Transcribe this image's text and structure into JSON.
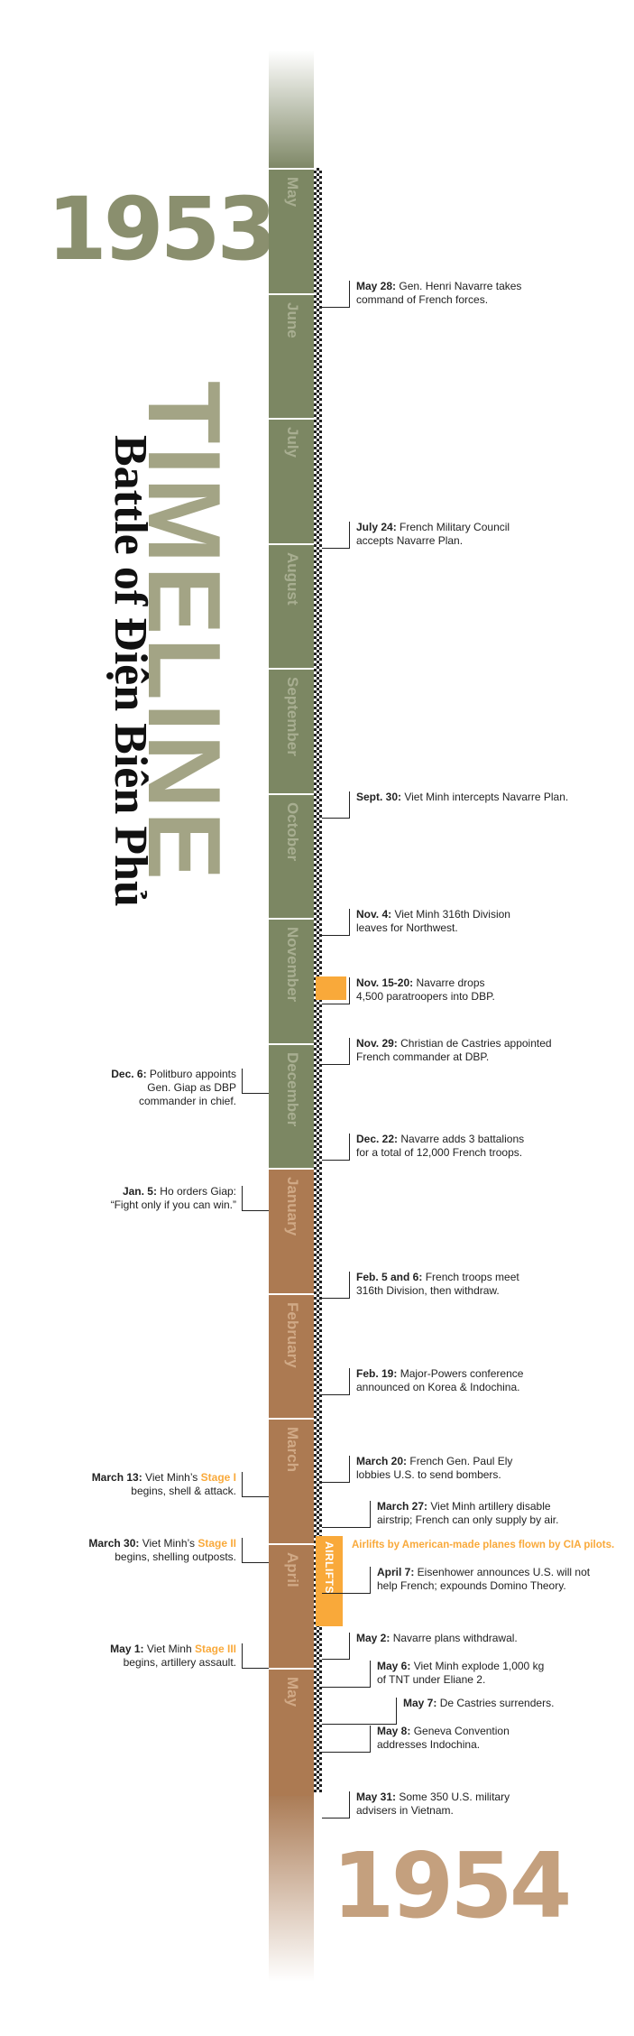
{
  "title": {
    "main": "TIMELINE",
    "sub": "Battle of Điện Biên Phủ"
  },
  "years": {
    "start": "1953",
    "end": "1954"
  },
  "months": [
    {
      "name": "May",
      "year": 1953
    },
    {
      "name": "June",
      "year": 1953
    },
    {
      "name": "July",
      "year": 1953
    },
    {
      "name": "August",
      "year": 1953
    },
    {
      "name": "September",
      "year": 1953
    },
    {
      "name": "October",
      "year": 1953
    },
    {
      "name": "November",
      "year": 1953
    },
    {
      "name": "December",
      "year": 1953
    },
    {
      "name": "January",
      "year": 1954
    },
    {
      "name": "February",
      "year": 1954
    },
    {
      "name": "March",
      "year": 1954
    },
    {
      "name": "April",
      "year": 1954
    },
    {
      "name": "May",
      "year": 1954
    }
  ],
  "airlifts": {
    "label": "AIRLIFTS",
    "note": "Airlifts by American-made planes flown by CIA pilots."
  },
  "events_right": [
    {
      "date": "May 28:",
      "lines": [
        "Gen. Henri Navarre takes",
        "command of French forces."
      ]
    },
    {
      "date": "July 24:",
      "lines": [
        "French Military Council",
        "accepts Navarre Plan."
      ]
    },
    {
      "date": "Sept. 30:",
      "lines": [
        "Viet Minh intercepts Navarre Plan."
      ]
    },
    {
      "date": "Nov. 4:",
      "lines": [
        "Viet Minh 316th Division",
        "leaves for Northwest."
      ]
    },
    {
      "date": "Nov. 15-20:",
      "lines": [
        "Navarre drops",
        "4,500 paratroopers into DBP."
      ]
    },
    {
      "date": "Nov. 29:",
      "lines": [
        "Christian de Castries appointed",
        "French commander at DBP."
      ]
    },
    {
      "date": "Dec. 22:",
      "lines": [
        "Navarre adds 3 battalions",
        "for a total of 12,000 French troops."
      ]
    },
    {
      "date": "Feb. 5 and 6:",
      "lines": [
        "French troops meet",
        "316th Division, then withdraw."
      ]
    },
    {
      "date": "Feb. 19:",
      "lines": [
        "Major-Powers conference",
        "announced on Korea & Indochina."
      ]
    },
    {
      "date": "March 20:",
      "lines": [
        "French Gen. Paul Ely",
        "lobbies U.S. to send bombers."
      ]
    },
    {
      "date": "March 27:",
      "lines": [
        "Viet Minh artillery disable",
        "airstrip; French can only supply by air."
      ]
    },
    {
      "date": "April 7:",
      "lines": [
        "Eisenhower announces U.S. will not",
        "help French; expounds Domino Theory."
      ]
    },
    {
      "date": "May 2:",
      "lines": [
        "Navarre plans withdrawal."
      ]
    },
    {
      "date": "May 6:",
      "lines": [
        "Viet Minh explode 1,000 kg",
        "of TNT under Eliane 2."
      ]
    },
    {
      "date": "May 7:",
      "lines": [
        "De Castries surrenders."
      ]
    },
    {
      "date": "May 8:",
      "lines": [
        "Geneva Convention",
        "addresses Indochina."
      ]
    },
    {
      "date": "May 31:",
      "lines": [
        "Some 350 U.S. military",
        "advisers in Vietnam."
      ]
    }
  ],
  "events_left": [
    {
      "date": "Dec. 6:",
      "first": "Politburo appoints",
      "lines": [
        "Gen. Giap as DBP",
        "commander in chief."
      ]
    },
    {
      "date": "Jan. 5:",
      "first": "Ho orders Giap:",
      "lines": [
        "“Fight only if you can win.”"
      ]
    },
    {
      "date": "March 13:",
      "first": "Viet Minh’s ",
      "stage": "Stage I",
      "lines": [
        "begins, shell & attack."
      ]
    },
    {
      "date": "March 30:",
      "first": "Viet Minh’s ",
      "stage": "Stage II",
      "lines": [
        "begins, shelling outposts."
      ]
    },
    {
      "date": "May 1:",
      "first": "Viet Minh ",
      "stage": "Stage III",
      "lines": [
        "begins, artillery assault."
      ]
    }
  ]
}
